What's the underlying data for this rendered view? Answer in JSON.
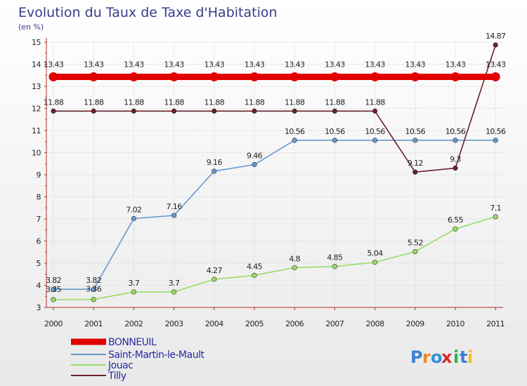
{
  "chart_data": {
    "type": "line",
    "title": "Evolution du Taux de Taxe d'Habitation",
    "subtitle": "(en %)",
    "x": [
      "2000",
      "2001",
      "2002",
      "2003",
      "2004",
      "2005",
      "2006",
      "2007",
      "2008",
      "2009",
      "2010",
      "2011"
    ],
    "ylim": [
      3,
      15
    ],
    "yticks": [
      3,
      4,
      5,
      6,
      7,
      8,
      9,
      10,
      11,
      12,
      13,
      14,
      15
    ],
    "grid": true,
    "legend_position": "bottom-left",
    "series": [
      {
        "name": "BONNEUIL",
        "color": "#e00000",
        "values": [
          13.43,
          13.43,
          13.43,
          13.43,
          13.43,
          13.43,
          13.43,
          13.43,
          13.43,
          13.43,
          13.43,
          13.43
        ],
        "labels": [
          "13.43",
          "13.43",
          "13.43",
          "13.43",
          "13.43",
          "13.43",
          "13.43",
          "13.43",
          "13.43",
          "13.43",
          "13.43",
          "13.43"
        ]
      },
      {
        "name": "Saint-Martin-le-Mault",
        "color": "#6699cc",
        "values": [
          3.82,
          3.82,
          7.02,
          7.16,
          9.16,
          9.46,
          10.56,
          10.56,
          10.56,
          10.56,
          10.56,
          10.56
        ],
        "labels": [
          "3.82",
          "3.82",
          "7.02",
          "7.16",
          "9.16",
          "9.46",
          "10.56",
          "10.56",
          "10.56",
          "10.56",
          "10.56",
          "10.56"
        ]
      },
      {
        "name": "Jouac",
        "color": "#99dd66",
        "values": [
          3.35,
          3.36,
          3.7,
          3.7,
          4.27,
          4.45,
          4.8,
          4.85,
          5.04,
          5.52,
          6.55,
          7.1
        ],
        "labels": [
          "3.35",
          "3.36",
          "3.7",
          "3.7",
          "4.27",
          "4.45",
          "4.8",
          "4.85",
          "5.04",
          "5.52",
          "6.55",
          "7.1"
        ]
      },
      {
        "name": "Tilly",
        "color": "#6b1f2a",
        "values": [
          11.88,
          11.88,
          11.88,
          11.88,
          11.88,
          11.88,
          11.88,
          11.88,
          11.88,
          9.12,
          9.3,
          14.87
        ],
        "labels": [
          "11.88",
          "11.88",
          "11.88",
          "11.88",
          "11.88",
          "11.88",
          "11.88",
          "11.88",
          "11.88",
          "9.12",
          "9.3",
          "14.87"
        ]
      }
    ]
  },
  "branding": {
    "logo_text": "Proxiti",
    "letters": [
      "P",
      "r",
      "o",
      "x",
      "i",
      "t",
      "i"
    ],
    "colors": [
      "#3a7fd5",
      "#f08a1c",
      "#2f8fd8",
      "#d62a2a",
      "#2bb24c",
      "#3a7fd5",
      "#f0c020"
    ]
  }
}
